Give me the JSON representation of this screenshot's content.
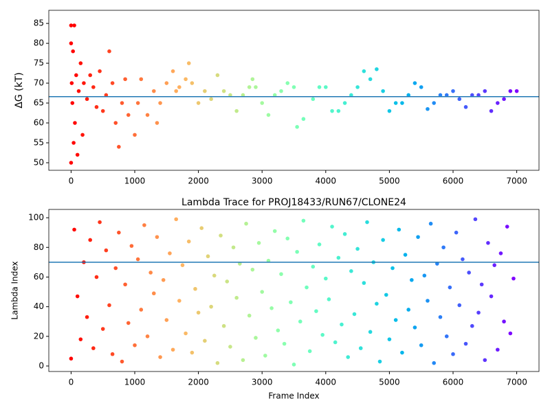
{
  "chart_data": [
    {
      "type": "scatter",
      "ylabel": "ΔG (kT)",
      "colormap": "rainbow_r",
      "hline": {
        "value": 66.6,
        "color": "#1f77b4"
      },
      "xlim": [
        -350,
        7350
      ],
      "xticks": [
        0,
        1000,
        2000,
        3000,
        4000,
        5000,
        6000,
        7000
      ],
      "ylim": [
        48.1,
        88.3
      ],
      "yticks": [
        50,
        55,
        60,
        65,
        70,
        75,
        80,
        85
      ],
      "x": [
        0,
        0,
        0,
        10,
        20,
        30,
        40,
        50,
        60,
        80,
        100,
        120,
        150,
        180,
        200,
        250,
        300,
        350,
        400,
        450,
        500,
        550,
        600,
        650,
        700,
        750,
        800,
        850,
        900,
        1000,
        1050,
        1100,
        1200,
        1300,
        1350,
        1400,
        1500,
        1600,
        1650,
        1700,
        1800,
        1850,
        1900,
        2000,
        2100,
        2200,
        2300,
        2400,
        2500,
        2600,
        2700,
        2800,
        2850,
        2900,
        3000,
        3100,
        3200,
        3300,
        3400,
        3500,
        3550,
        3650,
        3800,
        3900,
        4000,
        4100,
        4200,
        4300,
        4400,
        4500,
        4600,
        4700,
        4800,
        4900,
        5000,
        5100,
        5200,
        5300,
        5400,
        5500,
        5600,
        5700,
        5800,
        5900,
        6000,
        6100,
        6200,
        6300,
        6400,
        6500,
        6600,
        6700,
        6800,
        6900,
        7000
      ],
      "values": [
        50,
        80,
        84.5,
        70,
        65,
        78,
        55,
        84.5,
        60,
        72,
        52,
        68,
        75,
        57,
        70,
        66,
        72,
        69,
        64,
        73,
        63,
        67,
        78,
        70,
        60,
        54,
        65,
        71,
        62,
        57,
        65,
        71,
        62,
        68,
        60,
        65,
        70,
        73,
        68,
        69,
        71,
        75,
        70,
        65,
        68,
        66,
        72,
        68,
        67,
        63,
        67,
        69,
        71,
        69,
        65,
        62,
        67,
        68,
        70,
        69,
        59,
        61,
        66,
        69,
        69,
        63,
        63,
        65,
        67,
        69,
        73,
        71,
        73.5,
        68,
        63,
        65,
        65,
        67,
        70,
        69,
        63.5,
        65,
        67,
        67,
        68,
        66,
        64,
        67,
        67,
        68,
        63,
        65,
        66,
        68,
        68
      ]
    },
    {
      "type": "scatter",
      "title": "Lambda Trace for PROJ18433/RUN67/CLONE24",
      "xlabel": "Frame Index",
      "ylabel": "Lambda Index",
      "colormap": "rainbow_r",
      "hline": {
        "value": 70,
        "color": "#1f77b4"
      },
      "xlim": [
        -350,
        7350
      ],
      "xticks": [
        0,
        1000,
        2000,
        3000,
        4000,
        5000,
        6000,
        7000
      ],
      "ylim": [
        -3.7,
        105.6
      ],
      "yticks": [
        0,
        20,
        40,
        60,
        80,
        100
      ],
      "x": [
        0,
        50,
        100,
        150,
        200,
        250,
        300,
        350,
        400,
        450,
        500,
        550,
        600,
        650,
        700,
        750,
        800,
        850,
        900,
        950,
        1000,
        1050,
        1100,
        1150,
        1200,
        1250,
        1300,
        1350,
        1400,
        1450,
        1500,
        1550,
        1600,
        1650,
        1700,
        1750,
        1800,
        1850,
        1900,
        1950,
        2000,
        2050,
        2100,
        2150,
        2200,
        2250,
        2300,
        2350,
        2400,
        2450,
        2500,
        2550,
        2600,
        2650,
        2700,
        2750,
        2800,
        2850,
        2900,
        2950,
        3000,
        3050,
        3100,
        3150,
        3200,
        3250,
        3300,
        3350,
        3400,
        3450,
        3500,
        3550,
        3600,
        3650,
        3700,
        3750,
        3800,
        3850,
        3900,
        3950,
        4000,
        4050,
        4100,
        4150,
        4200,
        4250,
        4300,
        4350,
        4400,
        4450,
        4500,
        4550,
        4600,
        4650,
        4700,
        4750,
        4800,
        4850,
        4900,
        4950,
        5000,
        5050,
        5100,
        5150,
        5200,
        5250,
        5300,
        5350,
        5400,
        5450,
        5500,
        5550,
        5600,
        5650,
        5700,
        5750,
        5800,
        5850,
        5900,
        5950,
        6000,
        6050,
        6100,
        6150,
        6200,
        6250,
        6300,
        6350,
        6400,
        6450,
        6500,
        6550,
        6600,
        6650,
        6700,
        6750,
        6800,
        6850,
        6900,
        6950
      ],
      "values": [
        5,
        92,
        47,
        18,
        70,
        33,
        85,
        12,
        60,
        97,
        25,
        78,
        41,
        8,
        66,
        90,
        3,
        55,
        29,
        81,
        14,
        72,
        38,
        95,
        20,
        63,
        49,
        87,
        6,
        58,
        31,
        76,
        11,
        99,
        44,
        68,
        22,
        84,
        9,
        52,
        36,
        93,
        17,
        74,
        40,
        61,
        2,
        88,
        27,
        57,
        13,
        80,
        46,
        69,
        4,
        96,
        34,
        65,
        19,
        83,
        50,
        7,
        71,
        39,
        91,
        24,
        62,
        15,
        86,
        43,
        1,
        77,
        30,
        98,
        53,
        10,
        67,
        37,
        82,
        21,
        59,
        45,
        94,
        16,
        73,
        28,
        89,
        6,
        64,
        35,
        79,
        12,
        56,
        97,
        23,
        70,
        42,
        3,
        85,
        48,
        18,
        66,
        31,
        92,
        9,
        75,
        38,
        58,
        26,
        87,
        14,
        61,
        44,
        96,
        2,
        69,
        33,
        80,
        20,
        53,
        8,
        90,
        41,
        72,
        15,
        63,
        27,
        99,
        36,
        55,
        4,
        83,
        47,
        68,
        11,
        76,
        30,
        94,
        22,
        59
      ]
    }
  ]
}
